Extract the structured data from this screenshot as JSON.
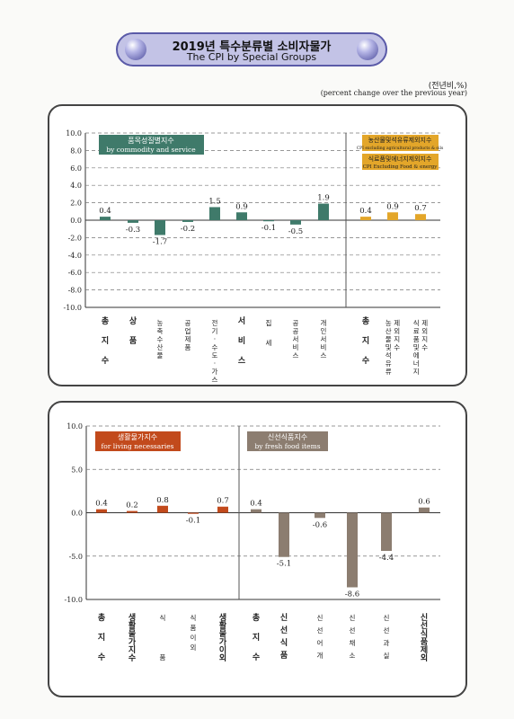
{
  "title": {
    "korean": "2019년 특수분류별 소비자물가",
    "english": "The CPI by Special Groups"
  },
  "unit": {
    "korean": "(전년비,%)",
    "english": "(percent change over the previous year)"
  },
  "colors": {
    "green": "#3f7a6a",
    "gold": "#e3a62a",
    "orange_red": "#c24a1c",
    "gray_brown": "#8c7d70",
    "title_border": "#5a5aa8",
    "title_fill": "#c3c3e6"
  },
  "chart_data": [
    {
      "type": "bar",
      "ylim": [
        -10,
        10
      ],
      "yticks": [
        "10.0",
        "8.0",
        "6.0",
        "4.0",
        "2.0",
        "0.0",
        "-2.0",
        "-4.0",
        "-6.0",
        "-8.0",
        "-10.0"
      ],
      "grid": true,
      "legends": [
        {
          "korean": "품목성질별지수",
          "english": "by commodity and service",
          "color": "#3f7a6a"
        },
        {
          "korean": "농산물및석유류제외지수",
          "english": "CPI excluding agricultural products & oils",
          "color": "#e3a62a"
        },
        {
          "korean": "식료품및에너지제외지수",
          "english": "CPI Excluding Food & energy",
          "color": "#e3a62a"
        }
      ],
      "categories": [
        "총지수",
        "상품",
        "농축수산물",
        "공업제품",
        "전기·수도·가스",
        "서비스",
        "집세",
        "공공서비스",
        "개인서비스",
        "총지수",
        "농산물및석유류제외지수",
        "식료품및에너지제외지수"
      ],
      "category_labels": [
        "총 지 수",
        "상 품",
        "농축수산물",
        "공업제품",
        "전기·수도·가스",
        "서 비 스",
        "집 세",
        "공공서비스",
        "개인서비스",
        "총 지 수",
        "농산물및석유류 제외지수",
        "식료품및에너지 제외지수"
      ],
      "values": [
        0.4,
        -0.3,
        -1.7,
        -0.2,
        1.5,
        0.9,
        -0.1,
        -0.5,
        1.9,
        0.4,
        0.9,
        0.7
      ],
      "value_labels": [
        "0.4",
        "-0.3",
        "-1.7",
        "-0.2",
        "1.5",
        "0.9",
        "-0.1",
        "-0.5",
        "1.9",
        "0.4",
        "0.9",
        "0.7"
      ]
    },
    {
      "type": "bar",
      "ylim": [
        -10,
        10
      ],
      "yticks": [
        "10.0",
        "5.0",
        "0.0",
        "-5.0",
        "-10.0"
      ],
      "grid": true,
      "legends": [
        {
          "korean": "생활물가지수",
          "english": "for living necessaries",
          "color": "#c24a1c"
        },
        {
          "korean": "신선식품지수",
          "english": "by fresh food items",
          "color": "#8c7d70"
        }
      ],
      "categories": [
        "총지수",
        "생활물가지수",
        "식품",
        "식품이외",
        "생활물가이외",
        "총지수",
        "신선식품",
        "신선어개",
        "신선채소",
        "신선과실",
        "신선식품제외"
      ],
      "category_labels": [
        "총 지 수",
        "생활물가지수",
        "식 품",
        "식품이외",
        "생활물가이외",
        "총 지 수",
        "신선식품",
        "신선어개",
        "신선채소",
        "신선과실",
        "신선식품제외"
      ],
      "values": [
        0.4,
        0.2,
        0.8,
        -0.1,
        0.7,
        0.4,
        -5.1,
        -0.6,
        -8.6,
        -4.4,
        0.6
      ],
      "value_labels": [
        "0.4",
        "0.2",
        "0.8",
        "-0.1",
        "0.7",
        "0.4",
        "-5.1",
        "-0.6",
        "-8.6",
        "-4.4",
        "0.6"
      ]
    }
  ]
}
